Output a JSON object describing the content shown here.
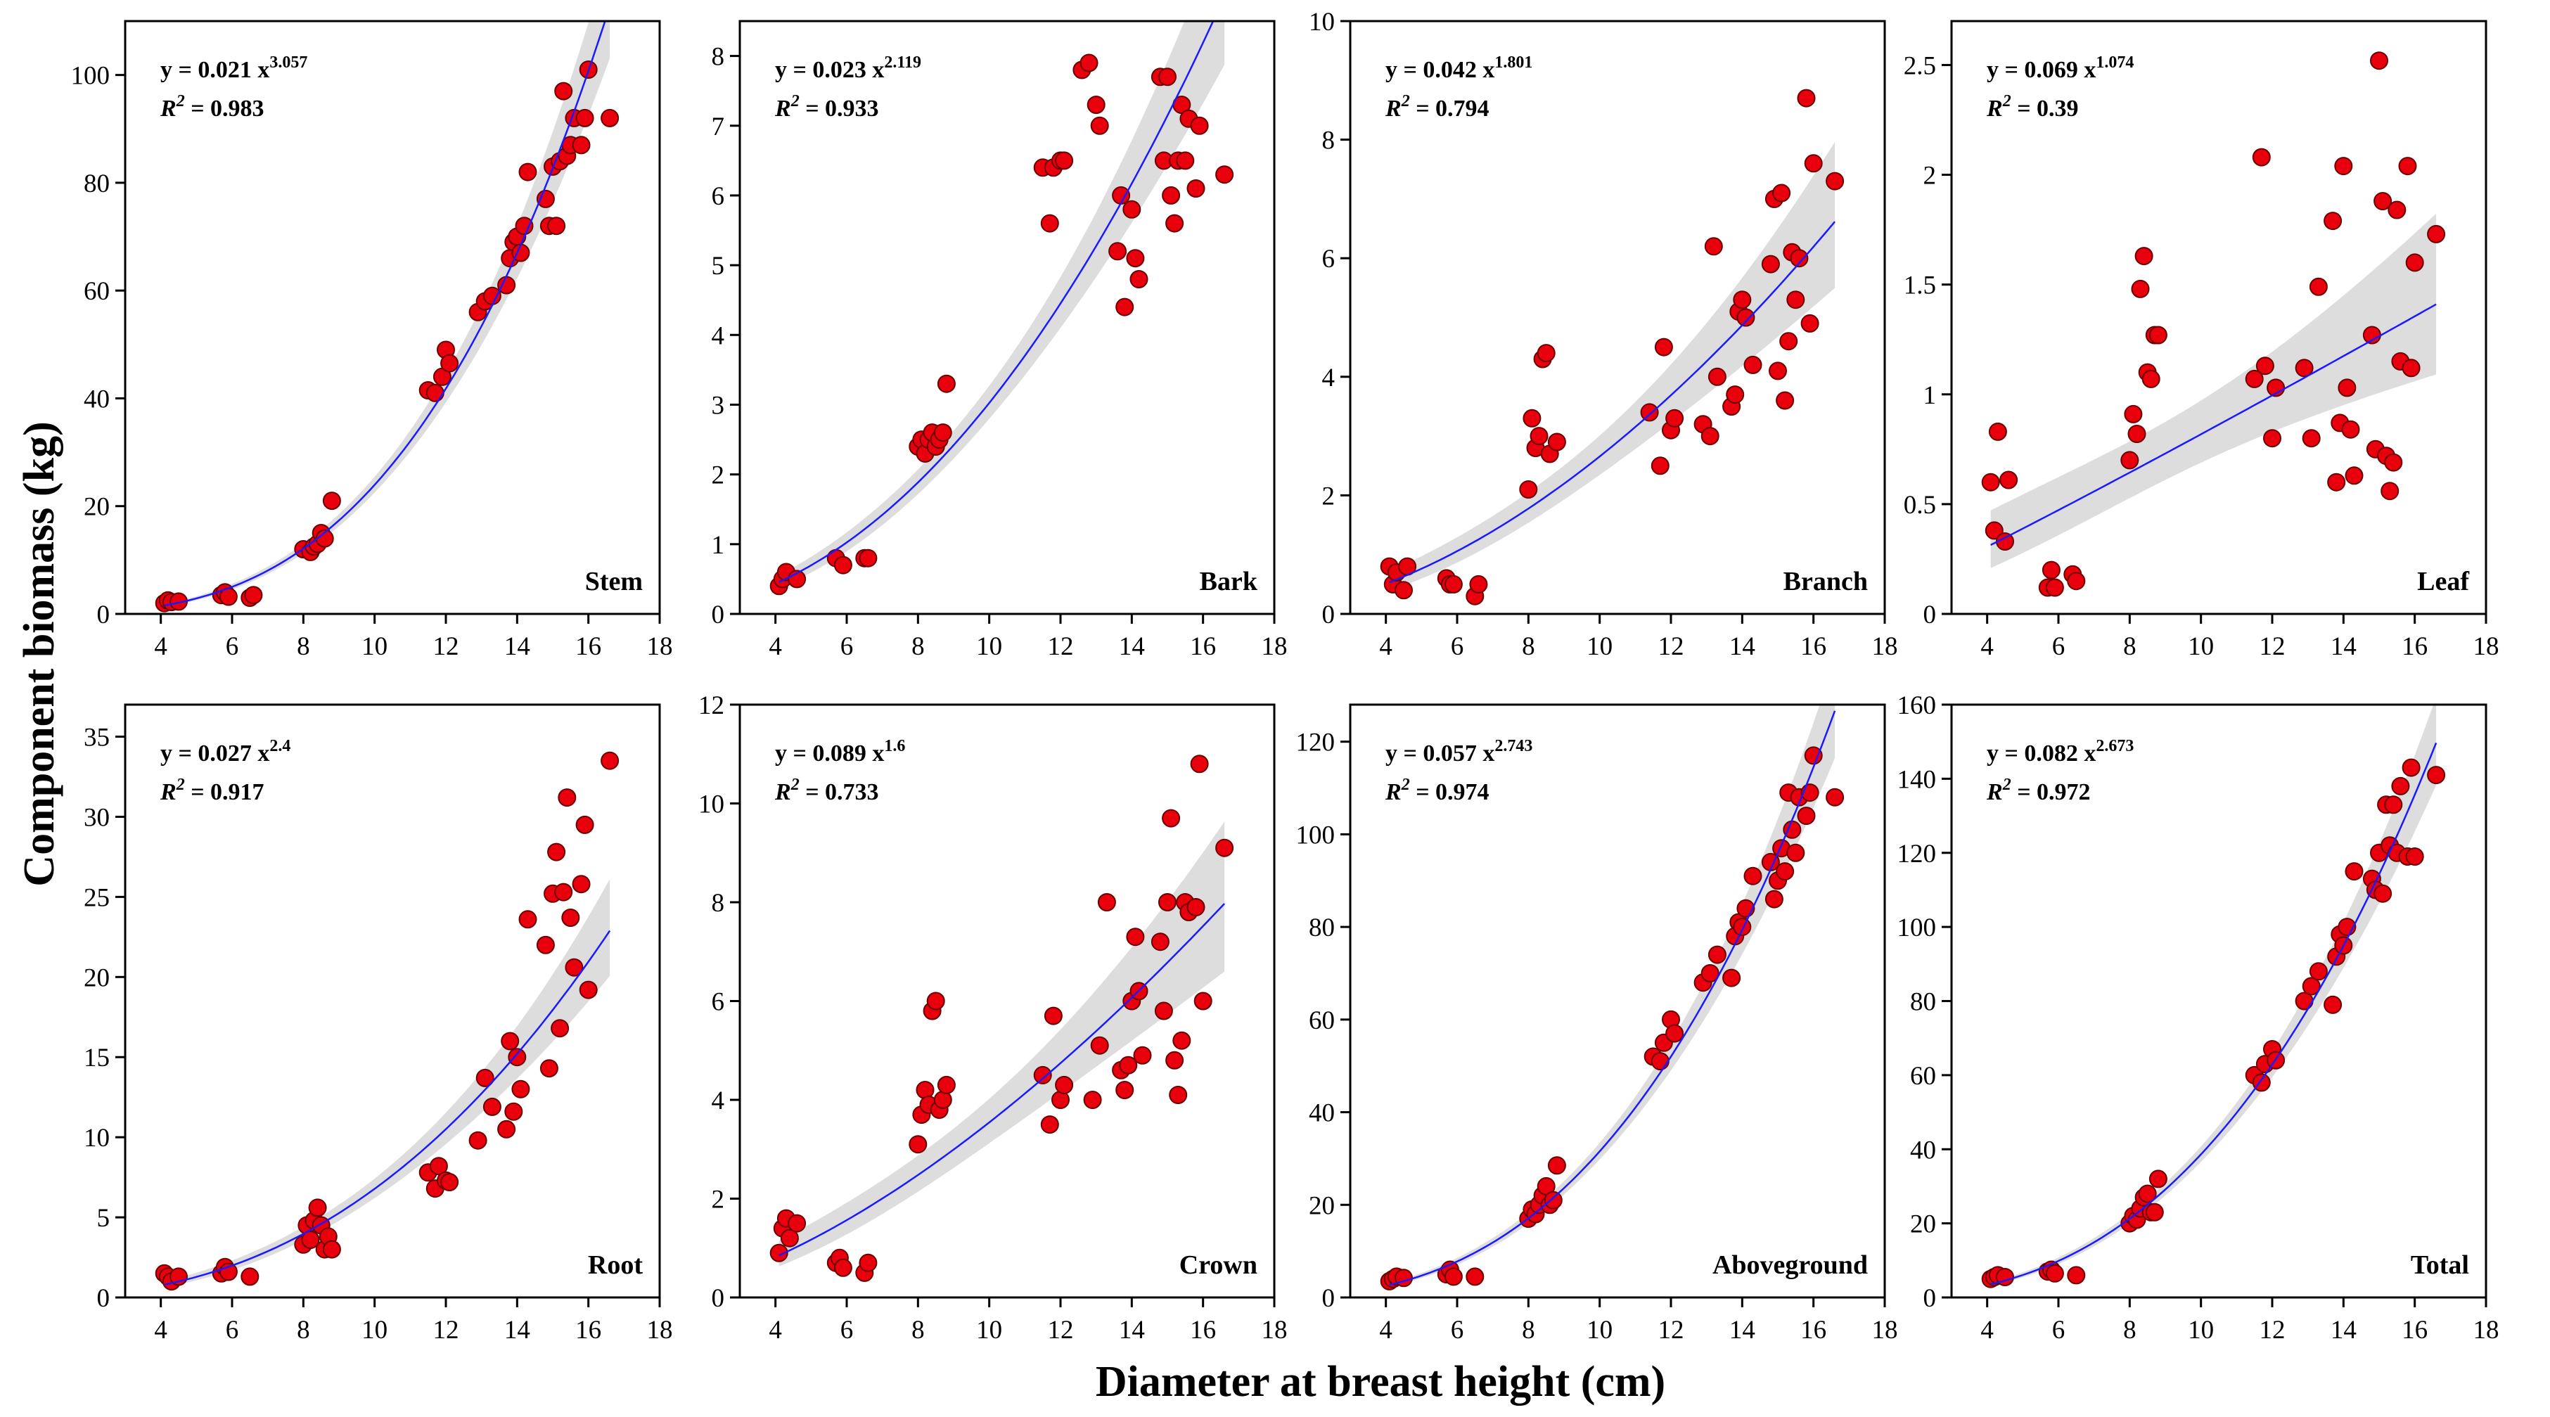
{
  "figure": {
    "ylabel": "Component biomass (kg)",
    "xlabel": "Diameter at breast height (cm)"
  },
  "colors": {
    "point_fill": "#e8000d",
    "point_stroke": "#6b0000",
    "fit_line": "#1a1aff",
    "ci_band": "#dddddd",
    "axis": "#000000"
  },
  "chart_data": [
    {
      "type": "scatter",
      "panel": "Stem",
      "equation": {
        "y_label": "y = 0.021 x",
        "exponent": "3.057",
        "r2_label": "R",
        "r2_sup": "2",
        "r2_value": " = 0.983"
      },
      "fit": {
        "a": 0.021,
        "b": 3.057
      },
      "xlim": [
        3,
        18
      ],
      "ylim": [
        0,
        110
      ],
      "xticks": [
        4,
        6,
        8,
        10,
        12,
        14,
        16,
        18
      ],
      "yticks": [
        0,
        20,
        40,
        60,
        80,
        100
      ],
      "x": [
        4.1,
        4.2,
        4.3,
        4.5,
        5.7,
        5.8,
        5.9,
        6.5,
        6.6,
        8.0,
        8.2,
        8.3,
        8.4,
        8.5,
        8.6,
        8.8,
        11.5,
        11.7,
        11.9,
        12.0,
        12.1,
        12.9,
        13.1,
        13.3,
        13.7,
        13.8,
        13.9,
        14.0,
        14.1,
        14.2,
        14.3,
        14.8,
        14.9,
        15.0,
        15.1,
        15.2,
        15.3,
        15.4,
        15.5,
        15.6,
        15.8,
        15.9,
        16.0,
        16.6
      ],
      "y": [
        2.0,
        2.5,
        2.2,
        2.3,
        3.5,
        4.0,
        3.2,
        3.0,
        3.5,
        12.0,
        11.5,
        12.5,
        13.0,
        15.0,
        14.0,
        21.0,
        41.5,
        41.0,
        44.0,
        49.0,
        46.5,
        56.0,
        58.0,
        59.0,
        61.0,
        66.0,
        69.0,
        70.0,
        67.0,
        72.0,
        82.0,
        77.0,
        72.0,
        83.0,
        72.0,
        84.0,
        97.0,
        85.0,
        87.0,
        92.0,
        87.0,
        92.0,
        101.0,
        92.0
      ]
    },
    {
      "type": "scatter",
      "panel": "Bark",
      "equation": {
        "y_label": "y = 0.023 x",
        "exponent": "2.119",
        "r2_label": "R",
        "r2_sup": "2",
        "r2_value": " = 0.933"
      },
      "fit": {
        "a": 0.023,
        "b": 2.119
      },
      "xlim": [
        3,
        18
      ],
      "ylim": [
        0,
        8.5
      ],
      "xticks": [
        4,
        6,
        8,
        10,
        12,
        14,
        16,
        18
      ],
      "yticks": [
        0,
        1,
        2,
        3,
        4,
        5,
        6,
        7,
        8
      ],
      "x": [
        4.1,
        4.2,
        4.3,
        4.6,
        5.7,
        5.9,
        6.5,
        6.6,
        8.0,
        8.1,
        8.2,
        8.3,
        8.4,
        8.5,
        8.6,
        8.7,
        8.8,
        11.5,
        11.7,
        11.8,
        12.0,
        12.1,
        12.6,
        12.8,
        13.0,
        13.1,
        13.6,
        13.7,
        13.8,
        14.0,
        14.1,
        14.2,
        14.8,
        14.9,
        15.0,
        15.1,
        15.2,
        15.3,
        15.4,
        15.5,
        15.6,
        15.8,
        15.9,
        16.6
      ],
      "y": [
        0.4,
        0.5,
        0.6,
        0.5,
        0.8,
        0.7,
        0.8,
        0.8,
        2.4,
        2.5,
        2.3,
        2.5,
        2.6,
        2.4,
        2.5,
        2.6,
        3.3,
        6.4,
        5.6,
        6.4,
        6.5,
        6.5,
        7.8,
        7.9,
        7.3,
        7.0,
        5.2,
        6.0,
        4.4,
        5.8,
        5.1,
        4.8,
        7.7,
        6.5,
        7.7,
        6.0,
        5.6,
        6.5,
        7.3,
        6.5,
        7.1,
        6.1,
        7.0,
        6.3
      ]
    },
    {
      "type": "scatter",
      "panel": "Branch",
      "equation": {
        "y_label": "y = 0.042 x",
        "exponent": "1.801",
        "r2_label": "R",
        "r2_sup": "2",
        "r2_value": " = 0.794"
      },
      "fit": {
        "a": 0.042,
        "b": 1.801
      },
      "xlim": [
        3,
        18
      ],
      "ylim": [
        0,
        10
      ],
      "xticks": [
        4,
        6,
        8,
        10,
        12,
        14,
        16,
        18
      ],
      "yticks": [
        0,
        2,
        4,
        6,
        8,
        10
      ],
      "x": [
        4.1,
        4.2,
        4.3,
        4.5,
        4.6,
        5.7,
        5.8,
        5.9,
        6.5,
        6.6,
        8.0,
        8.1,
        8.2,
        8.3,
        8.4,
        8.5,
        8.6,
        8.8,
        11.4,
        11.7,
        11.8,
        12.0,
        12.1,
        12.9,
        13.1,
        13.2,
        13.3,
        13.7,
        13.8,
        13.9,
        14.0,
        14.1,
        14.3,
        14.8,
        14.9,
        15.0,
        15.1,
        15.2,
        15.3,
        15.4,
        15.5,
        15.6,
        15.8,
        15.9,
        16.0,
        16.6
      ],
      "y": [
        0.8,
        0.5,
        0.7,
        0.4,
        0.8,
        0.6,
        0.5,
        0.5,
        0.3,
        0.5,
        2.1,
        3.3,
        2.8,
        3.0,
        4.3,
        4.4,
        2.7,
        2.9,
        3.4,
        2.5,
        4.5,
        3.1,
        3.3,
        3.2,
        3.0,
        6.2,
        4.0,
        3.5,
        3.7,
        5.1,
        5.3,
        5.0,
        4.2,
        5.9,
        7.0,
        4.1,
        7.1,
        3.6,
        4.6,
        6.1,
        5.3,
        6.0,
        8.7,
        4.9,
        7.6,
        7.3
      ]
    },
    {
      "type": "scatter",
      "panel": "Leaf",
      "equation": {
        "y_label": "y = 0.069 x",
        "exponent": "1.074",
        "r2_label": "R",
        "r2_sup": "2",
        "r2_value": " = 0.39"
      },
      "fit": {
        "a": 0.069,
        "b": 1.074
      },
      "xlim": [
        3,
        18
      ],
      "ylim": [
        0,
        2.7
      ],
      "xticks": [
        4,
        6,
        8,
        10,
        12,
        14,
        16,
        18
      ],
      "yticks": [
        0,
        0.5,
        1,
        1.5,
        2,
        2.5
      ],
      "x": [
        4.1,
        4.2,
        4.3,
        4.5,
        4.6,
        5.7,
        5.8,
        5.9,
        6.4,
        6.5,
        8.0,
        8.1,
        8.2,
        8.3,
        8.4,
        8.5,
        8.6,
        8.7,
        8.8,
        11.5,
        11.7,
        11.8,
        12.0,
        12.1,
        12.9,
        13.1,
        13.3,
        13.7,
        13.8,
        13.9,
        14.0,
        14.1,
        14.2,
        14.3,
        14.8,
        14.9,
        15.0,
        15.1,
        15.2,
        15.3,
        15.4,
        15.5,
        15.6,
        15.8,
        15.9,
        16.0,
        16.6
      ],
      "y": [
        0.6,
        0.38,
        0.83,
        0.33,
        0.61,
        0.12,
        0.2,
        0.12,
        0.18,
        0.15,
        0.7,
        0.91,
        0.82,
        1.48,
        1.63,
        1.1,
        1.07,
        1.27,
        1.27,
        1.07,
        2.08,
        1.13,
        0.8,
        1.03,
        1.12,
        0.8,
        1.49,
        1.79,
        0.6,
        0.87,
        2.04,
        1.03,
        0.84,
        0.63,
        1.27,
        0.75,
        2.52,
        1.88,
        0.72,
        0.56,
        0.69,
        1.84,
        1.15,
        2.04,
        1.12,
        1.6,
        1.73
      ]
    },
    {
      "type": "scatter",
      "panel": "Root",
      "equation": {
        "y_label": "y = 0.027 x",
        "exponent": "2.4",
        "r2_label": "R",
        "r2_sup": "2",
        "r2_value": " = 0.917"
      },
      "fit": {
        "a": 0.027,
        "b": 2.4
      },
      "xlim": [
        3,
        18
      ],
      "ylim": [
        0,
        37
      ],
      "xticks": [
        4,
        6,
        8,
        10,
        12,
        14,
        16,
        18
      ],
      "yticks": [
        0,
        5,
        10,
        15,
        20,
        25,
        30,
        35
      ],
      "x": [
        4.1,
        4.2,
        4.3,
        4.5,
        5.7,
        5.8,
        5.9,
        6.5,
        8.0,
        8.1,
        8.2,
        8.3,
        8.4,
        8.5,
        8.6,
        8.7,
        8.8,
        11.5,
        11.7,
        11.8,
        12.0,
        12.1,
        12.9,
        13.1,
        13.3,
        13.7,
        13.8,
        13.9,
        14.0,
        14.1,
        14.3,
        14.8,
        14.9,
        15.0,
        15.1,
        15.2,
        15.3,
        15.4,
        15.5,
        15.6,
        15.8,
        15.9,
        16.0,
        16.6
      ],
      "y": [
        1.5,
        1.3,
        1.0,
        1.3,
        1.5,
        1.9,
        1.6,
        1.3,
        3.3,
        4.5,
        3.6,
        4.8,
        5.6,
        4.5,
        3.0,
        3.8,
        3.0,
        7.8,
        6.8,
        8.2,
        7.3,
        7.2,
        9.8,
        13.7,
        11.9,
        10.5,
        16.0,
        11.6,
        15.0,
        13.0,
        23.6,
        22.0,
        14.3,
        25.2,
        27.8,
        16.8,
        25.3,
        31.2,
        23.7,
        20.6,
        25.8,
        29.5,
        19.2,
        33.5
      ]
    },
    {
      "type": "scatter",
      "panel": "Crown",
      "equation": {
        "y_label": "y = 0.089 x",
        "exponent": "1.6",
        "r2_label": "R",
        "r2_sup": "2",
        "r2_value": " = 0.733"
      },
      "fit": {
        "a": 0.089,
        "b": 1.6
      },
      "xlim": [
        3,
        18
      ],
      "ylim": [
        0,
        12
      ],
      "xticks": [
        4,
        6,
        8,
        10,
        12,
        14,
        16,
        18
      ],
      "yticks": [
        0,
        2,
        4,
        6,
        8,
        10,
        12
      ],
      "x": [
        4.1,
        4.2,
        4.3,
        4.4,
        4.6,
        5.7,
        5.8,
        5.9,
        6.5,
        6.6,
        8.0,
        8.1,
        8.2,
        8.3,
        8.4,
        8.5,
        8.6,
        8.7,
        8.8,
        11.5,
        11.7,
        11.8,
        12.0,
        12.1,
        12.9,
        13.1,
        13.3,
        13.7,
        13.8,
        13.9,
        14.0,
        14.1,
        14.2,
        14.3,
        14.8,
        14.9,
        15.0,
        15.1,
        15.2,
        15.3,
        15.4,
        15.5,
        15.6,
        15.8,
        15.9,
        16.0,
        16.6
      ],
      "y": [
        0.9,
        1.4,
        1.6,
        1.2,
        1.5,
        0.7,
        0.8,
        0.6,
        0.5,
        0.7,
        3.1,
        3.7,
        4.2,
        3.9,
        5.8,
        6.0,
        3.8,
        4.0,
        4.3,
        4.5,
        3.5,
        5.7,
        4.0,
        4.3,
        4.0,
        5.1,
        8.0,
        4.6,
        4.2,
        4.7,
        6.0,
        7.3,
        6.2,
        4.9,
        7.2,
        5.8,
        8.0,
        9.7,
        4.8,
        4.1,
        5.2,
        8.0,
        7.8,
        7.9,
        10.8,
        6.0,
        9.1
      ]
    },
    {
      "type": "scatter",
      "panel": "Aboveground",
      "equation": {
        "y_label": "y = 0.057 x",
        "exponent": "2.743",
        "r2_label": "R",
        "r2_sup": "2",
        "r2_value": " = 0.974"
      },
      "fit": {
        "a": 0.057,
        "b": 2.743
      },
      "xlim": [
        3,
        18
      ],
      "ylim": [
        0,
        128
      ],
      "xticks": [
        4,
        6,
        8,
        10,
        12,
        14,
        16,
        18
      ],
      "yticks": [
        0,
        20,
        40,
        60,
        80,
        100,
        120
      ],
      "x": [
        4.1,
        4.2,
        4.3,
        4.5,
        5.7,
        5.8,
        5.9,
        6.5,
        8.0,
        8.1,
        8.2,
        8.3,
        8.4,
        8.5,
        8.6,
        8.7,
        8.8,
        11.5,
        11.7,
        11.8,
        12.0,
        12.1,
        12.9,
        13.1,
        13.3,
        13.7,
        13.8,
        13.9,
        14.0,
        14.1,
        14.3,
        14.8,
        14.9,
        15.0,
        15.1,
        15.2,
        15.3,
        15.4,
        15.5,
        15.6,
        15.8,
        15.9,
        16.0,
        16.6
      ],
      "y": [
        3.5,
        4.0,
        4.5,
        4.2,
        5.0,
        6.0,
        4.5,
        4.5,
        17.0,
        19.0,
        18.0,
        20.0,
        22.0,
        24.0,
        20.0,
        21.0,
        28.5,
        52.0,
        51.0,
        55.0,
        60.0,
        57.0,
        68.0,
        70.0,
        74.0,
        69.0,
        78.0,
        81.0,
        80.0,
        84.0,
        91.0,
        94.0,
        86.0,
        90.0,
        97.0,
        92.0,
        109.0,
        101.0,
        96.0,
        108.0,
        104.0,
        109.0,
        117.0,
        108.0
      ]
    },
    {
      "type": "scatter",
      "panel": "Total",
      "equation": {
        "y_label": "y = 0.082 x",
        "exponent": "2.673",
        "r2_label": "R",
        "r2_sup": "2",
        "r2_value": " = 0.972"
      },
      "fit": {
        "a": 0.082,
        "b": 2.673
      },
      "xlim": [
        3,
        18
      ],
      "ylim": [
        0,
        160
      ],
      "xticks": [
        4,
        6,
        8,
        10,
        12,
        14,
        16,
        18
      ],
      "yticks": [
        0,
        20,
        40,
        60,
        80,
        100,
        120,
        140,
        160
      ],
      "x": [
        4.1,
        4.2,
        4.3,
        4.5,
        5.7,
        5.8,
        5.9,
        6.5,
        8.0,
        8.1,
        8.2,
        8.3,
        8.4,
        8.5,
        8.6,
        8.7,
        8.8,
        11.5,
        11.7,
        11.8,
        12.0,
        12.1,
        12.9,
        13.1,
        13.3,
        13.7,
        13.8,
        13.9,
        14.0,
        14.1,
        14.3,
        14.8,
        14.9,
        15.0,
        15.1,
        15.2,
        15.3,
        15.4,
        15.5,
        15.6,
        15.8,
        15.9,
        16.0,
        16.6
      ],
      "y": [
        5.0,
        5.5,
        6.0,
        5.5,
        7.0,
        7.5,
        6.5,
        6.0,
        20.0,
        22.0,
        21.0,
        24.0,
        27.0,
        28.0,
        23.0,
        23.0,
        32.0,
        60.0,
        58.0,
        63.0,
        67.0,
        64.0,
        80.0,
        84.0,
        88.0,
        79.0,
        92.0,
        98.0,
        95.0,
        100.0,
        115.0,
        113.0,
        110.0,
        120.0,
        109.0,
        133.0,
        122.0,
        133.0,
        120.0,
        138.0,
        119.0,
        143.0,
        119.0,
        141.0
      ]
    }
  ]
}
